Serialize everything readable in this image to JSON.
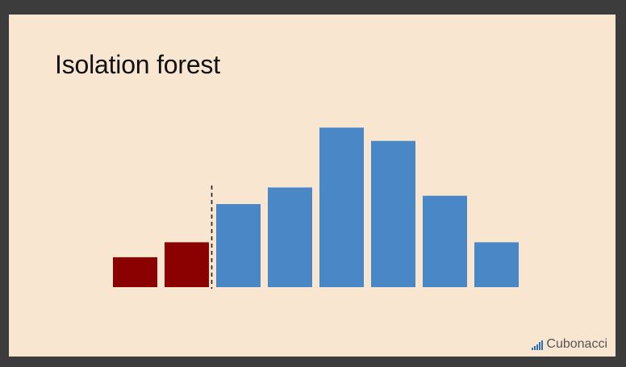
{
  "slide": {
    "title": "Isolation forest",
    "brand": "Cubonacci",
    "brand_icon": "bar-steps-icon"
  },
  "colors": {
    "background": "#f9e6d0",
    "anomaly": "#8b0000",
    "normal": "#4a87c7",
    "divider": "#222222",
    "frame": "#3c3c3c"
  },
  "chart_data": {
    "type": "bar",
    "categories": [
      "",
      "",
      "",
      "",
      "",
      "",
      "",
      ""
    ],
    "values": [
      18,
      27,
      50,
      60,
      96,
      88,
      55,
      27
    ],
    "groups": [
      "anomaly",
      "anomaly",
      "normal",
      "normal",
      "normal",
      "normal",
      "normal",
      "normal"
    ],
    "split_after_index": 1,
    "split_style": "dashed vertical line",
    "title": "",
    "xlabel": "",
    "ylabel": "",
    "ylim": [
      0,
      100
    ],
    "grid": false,
    "axes_visible": false
  }
}
